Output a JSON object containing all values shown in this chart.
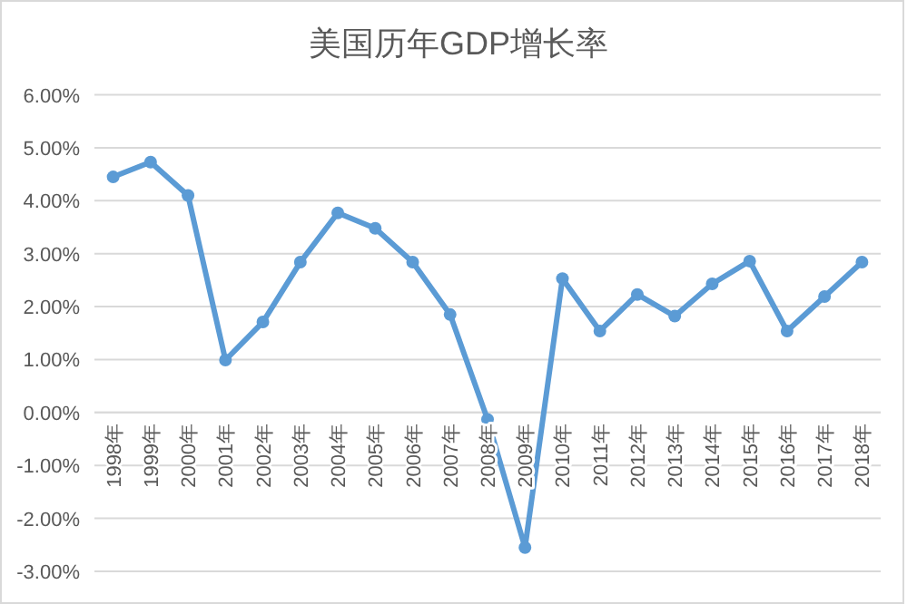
{
  "chart_data": {
    "type": "line",
    "title": "美国历年GDP增长率",
    "categories": [
      "1998年",
      "1999年",
      "2000年",
      "2001年",
      "2002年",
      "2003年",
      "2004年",
      "2005年",
      "2006年",
      "2007年",
      "2008年",
      "2009年",
      "2010年",
      "2011年",
      "2012年",
      "2013年",
      "2014年",
      "2015年",
      "2016年",
      "2017年",
      "2018年"
    ],
    "series": [
      {
        "color": "#5b9bd5",
        "values": [
          4.45,
          4.73,
          4.1,
          0.99,
          1.71,
          2.84,
          3.77,
          3.48,
          2.84,
          1.85,
          -0.13,
          -2.55,
          2.53,
          1.54,
          2.23,
          1.82,
          2.43,
          2.86,
          1.54,
          2.19,
          2.84
        ]
      }
    ],
    "ylim": [
      -3,
      6
    ],
    "yticks": [
      {
        "value": -3,
        "label": "-3.00%"
      },
      {
        "value": -2,
        "label": "-2.00%"
      },
      {
        "value": -1,
        "label": "-1.00%"
      },
      {
        "value": 0,
        "label": "0.00%"
      },
      {
        "value": 1,
        "label": "1.00%"
      },
      {
        "value": 2,
        "label": "2.00%"
      },
      {
        "value": 3,
        "label": "3.00%"
      },
      {
        "value": 4,
        "label": "4.00%"
      },
      {
        "value": 5,
        "label": "5.00%"
      },
      {
        "value": 6,
        "label": "6.00%"
      }
    ],
    "grid": "y",
    "marker": "circle",
    "line_style": "solid"
  }
}
